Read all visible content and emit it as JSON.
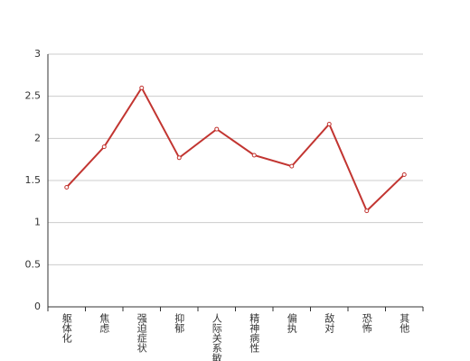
{
  "chart_data": {
    "type": "line",
    "categories": [
      "躯体化",
      "焦虑",
      "强迫症状",
      "抑郁",
      "人际关系敏感",
      "精神病性",
      "偏执",
      "敌对",
      "恐怖",
      "其他"
    ],
    "values": [
      1.42,
      1.9,
      2.6,
      1.77,
      2.11,
      1.8,
      1.67,
      2.17,
      1.14,
      1.57
    ],
    "color": "#c23531",
    "ylim": [
      0,
      3
    ],
    "yticks": [
      0,
      0.5,
      1,
      1.5,
      2,
      2.5,
      3
    ],
    "grid": true
  }
}
